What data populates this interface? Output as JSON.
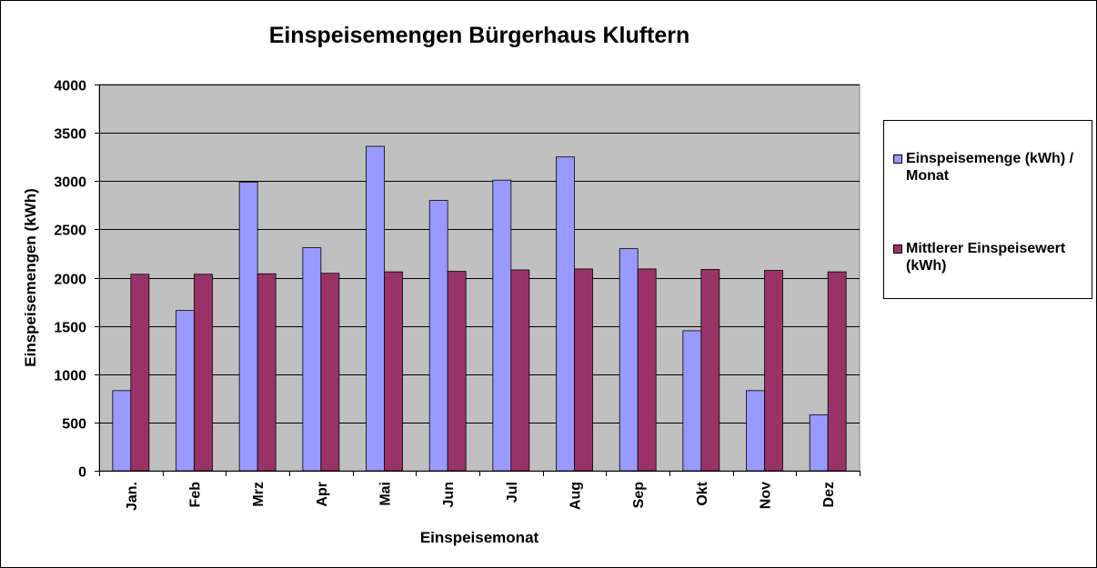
{
  "chart_data": {
    "type": "bar",
    "title": "Einspeisemengen Bürgerhaus Kluftern",
    "xlabel": "Einspeisemonat",
    "ylabel": "Einspeisemengen (kWh)",
    "ylim": [
      0,
      4000
    ],
    "yticks": [
      0,
      500,
      1000,
      1500,
      2000,
      2500,
      3000,
      3500,
      4000
    ],
    "categories": [
      "Jan.",
      "Feb",
      "Mrz",
      "Apr",
      "Mai",
      "Jun",
      "Jul",
      "Aug",
      "Sep",
      "Okt",
      "Nov",
      "Dez"
    ],
    "series": [
      {
        "name": "Einspeisemenge (kWh) / Monat",
        "color": "#9999ff",
        "values": [
          830,
          1660,
          2990,
          2310,
          3360,
          2800,
          3010,
          3250,
          2300,
          1450,
          830,
          580
        ]
      },
      {
        "name": "Mittlerer Einspeisewert (kWh)",
        "color": "#993366",
        "values": [
          2035,
          2035,
          2040,
          2045,
          2060,
          2065,
          2080,
          2090,
          2090,
          2085,
          2075,
          2060
        ]
      }
    ],
    "grid": true,
    "plot_background": "#c0c0c0",
    "legend_position": "right"
  }
}
